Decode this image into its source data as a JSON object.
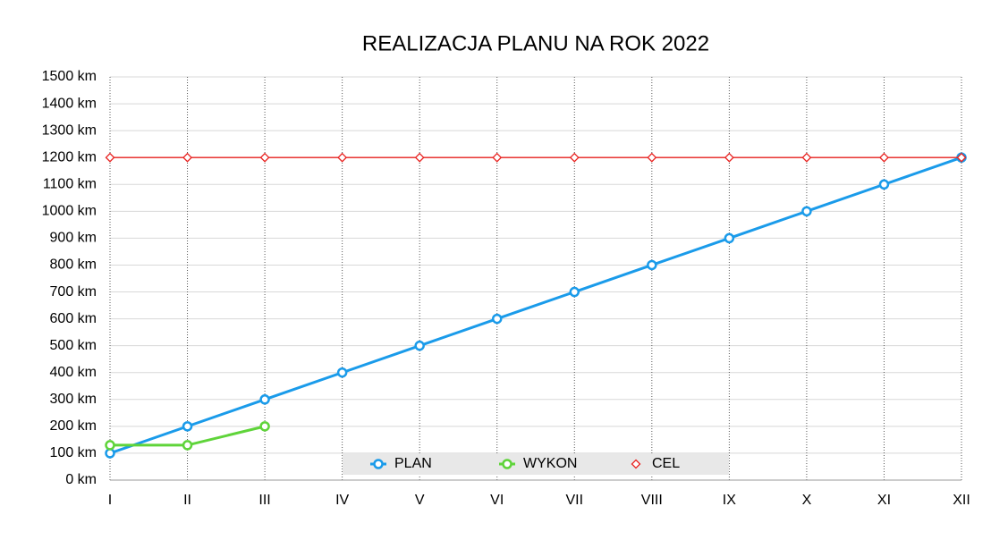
{
  "chart_data": {
    "type": "line",
    "title": "REALIZACJA PLANU NA ROK 2022",
    "categories": [
      "I",
      "II",
      "III",
      "IV",
      "V",
      "VI",
      "VII",
      "VIII",
      "IX",
      "X",
      "XI",
      "XII"
    ],
    "series": [
      {
        "name": "PLAN",
        "color": "#1a9bea",
        "marker": "circle",
        "values": [
          100,
          200,
          300,
          400,
          500,
          600,
          700,
          800,
          900,
          1000,
          1100,
          1200
        ]
      },
      {
        "name": "WYKON",
        "color": "#5fd43a",
        "marker": "circle",
        "values": [
          130,
          130,
          200,
          null,
          null,
          null,
          null,
          null,
          null,
          null,
          null,
          null
        ]
      },
      {
        "name": "CEL",
        "color": "#e8201e",
        "marker": "diamond",
        "values": [
          1200,
          1200,
          1200,
          1200,
          1200,
          1200,
          1200,
          1200,
          1200,
          1200,
          1200,
          1200
        ]
      }
    ],
    "ylim": [
      0,
      1500
    ],
    "yticks": [
      {
        "value": 0,
        "label": "0 km"
      },
      {
        "value": 100,
        "label": "100 km"
      },
      {
        "value": 200,
        "label": "200 km"
      },
      {
        "value": 300,
        "label": "300 km"
      },
      {
        "value": 400,
        "label": "400 km"
      },
      {
        "value": 500,
        "label": "500 km"
      },
      {
        "value": 600,
        "label": "600 km"
      },
      {
        "value": 700,
        "label": "700 km"
      },
      {
        "value": 800,
        "label": "800 km"
      },
      {
        "value": 900,
        "label": "900 km"
      },
      {
        "value": 1000,
        "label": "1000 km"
      },
      {
        "value": 1100,
        "label": "1100 km"
      },
      {
        "value": 1200,
        "label": "1200 km"
      },
      {
        "value": 1300,
        "label": "1300 km"
      },
      {
        "value": 1400,
        "label": "1400 km"
      },
      {
        "value": 1500,
        "label": "1500 km"
      }
    ],
    "grid": true,
    "legend": "bottom"
  }
}
